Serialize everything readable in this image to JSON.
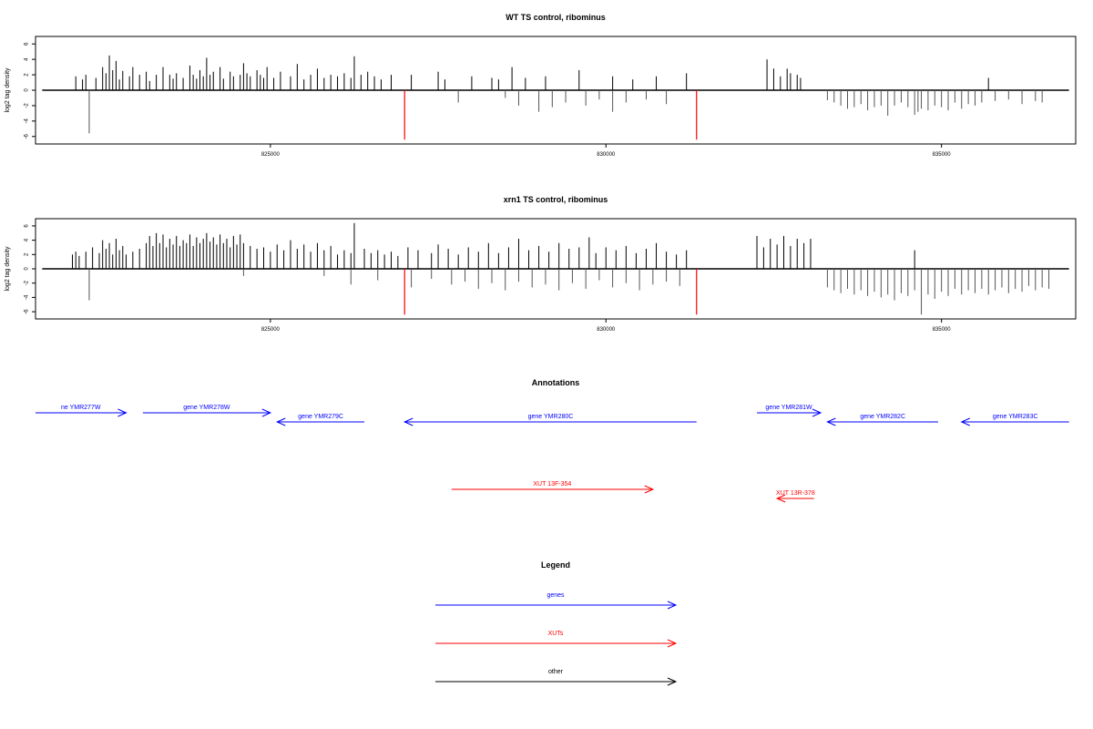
{
  "chart_data": [
    {
      "type": "bar",
      "title": "WT TS control, ribominus",
      "ylabel": "log2 tag density",
      "xlabel": "",
      "xlim": [
        821500,
        837000
      ],
      "ylim": [
        -6.5,
        6.5
      ],
      "yticks": [
        -6,
        -4,
        -2,
        0,
        2,
        4,
        6
      ],
      "xticks": [
        825000,
        830000,
        835000
      ],
      "xtick_labels": [
        "825000",
        "830000",
        "835000"
      ],
      "grid": false,
      "bars_forward": [
        [
          822100,
          1.8
        ],
        [
          822200,
          1.4
        ],
        [
          822250,
          2.0
        ],
        [
          822400,
          1.6
        ],
        [
          822500,
          3.0
        ],
        [
          822550,
          2.2
        ],
        [
          822600,
          4.5
        ],
        [
          822650,
          2.6
        ],
        [
          822700,
          3.8
        ],
        [
          822750,
          1.4
        ],
        [
          822800,
          2.5
        ],
        [
          822900,
          1.8
        ],
        [
          822950,
          3.0
        ],
        [
          823050,
          2.0
        ],
        [
          823150,
          2.4
        ],
        [
          823200,
          1.2
        ],
        [
          823300,
          2.0
        ],
        [
          823400,
          3.0
        ],
        [
          823500,
          2.0
        ],
        [
          823550,
          1.5
        ],
        [
          823600,
          2.2
        ],
        [
          823700,
          1.6
        ],
        [
          823800,
          3.2
        ],
        [
          823850,
          2.0
        ],
        [
          823900,
          1.5
        ],
        [
          823950,
          2.6
        ],
        [
          824000,
          1.8
        ],
        [
          824050,
          4.2
        ],
        [
          824100,
          2.0
        ],
        [
          824150,
          2.4
        ],
        [
          824250,
          3.0
        ],
        [
          824300,
          1.5
        ],
        [
          824400,
          2.4
        ],
        [
          824450,
          1.8
        ],
        [
          824550,
          2.0
        ],
        [
          824600,
          3.5
        ],
        [
          824650,
          2.2
        ],
        [
          824700,
          1.8
        ],
        [
          824800,
          2.6
        ],
        [
          824850,
          2.0
        ],
        [
          824900,
          1.6
        ],
        [
          824950,
          3.0
        ],
        [
          825050,
          1.6
        ],
        [
          825150,
          2.4
        ],
        [
          825300,
          1.8
        ],
        [
          825400,
          3.4
        ],
        [
          825500,
          1.4
        ],
        [
          825600,
          2.0
        ],
        [
          825700,
          2.8
        ],
        [
          825800,
          1.6
        ],
        [
          825900,
          2.0
        ],
        [
          826000,
          1.8
        ],
        [
          826100,
          2.2
        ],
        [
          826200,
          1.6
        ],
        [
          826250,
          4.4
        ],
        [
          826350,
          2.0
        ],
        [
          826450,
          2.4
        ],
        [
          826550,
          1.8
        ],
        [
          826650,
          1.4
        ],
        [
          826800,
          2.0
        ],
        [
          827100,
          2.0
        ],
        [
          827500,
          2.4
        ],
        [
          827600,
          1.4
        ],
        [
          828000,
          1.8
        ],
        [
          828300,
          1.6
        ],
        [
          828400,
          1.4
        ],
        [
          828600,
          3.0
        ],
        [
          828800,
          1.6
        ],
        [
          829100,
          1.8
        ],
        [
          829600,
          2.6
        ],
        [
          830100,
          1.8
        ],
        [
          830400,
          1.4
        ],
        [
          830750,
          1.8
        ],
        [
          831200,
          2.2
        ],
        [
          832400,
          4.0
        ],
        [
          832500,
          2.8
        ],
        [
          832600,
          1.8
        ],
        [
          832700,
          2.8
        ],
        [
          832750,
          2.2
        ],
        [
          832850,
          2.0
        ],
        [
          832900,
          1.6
        ],
        [
          835700,
          1.6
        ]
      ],
      "bars_reverse": [
        [
          822300,
          -5.6
        ],
        [
          827800,
          -1.6
        ],
        [
          828500,
          -1.0
        ],
        [
          828700,
          -2.0
        ],
        [
          829000,
          -2.8
        ],
        [
          829200,
          -2.2
        ],
        [
          829400,
          -1.6
        ],
        [
          829700,
          -2.0
        ],
        [
          829900,
          -1.2
        ],
        [
          830100,
          -2.8
        ],
        [
          830300,
          -1.6
        ],
        [
          830600,
          -1.2
        ],
        [
          830900,
          -1.8
        ],
        [
          833300,
          -1.3
        ],
        [
          833400,
          -1.6
        ],
        [
          833500,
          -2.0
        ],
        [
          833600,
          -2.4
        ],
        [
          833700,
          -2.2
        ],
        [
          833800,
          -1.8
        ],
        [
          833900,
          -2.6
        ],
        [
          834000,
          -2.2
        ],
        [
          834100,
          -2.0
        ],
        [
          834200,
          -3.3
        ],
        [
          834300,
          -2.0
        ],
        [
          834400,
          -1.6
        ],
        [
          834500,
          -2.2
        ],
        [
          834600,
          -3.2
        ],
        [
          834650,
          -2.8
        ],
        [
          834700,
          -2.4
        ],
        [
          834800,
          -2.6
        ],
        [
          834900,
          -2.0
        ],
        [
          835000,
          -2.2
        ],
        [
          835100,
          -2.6
        ],
        [
          835200,
          -1.6
        ],
        [
          835300,
          -2.4
        ],
        [
          835400,
          -1.8
        ],
        [
          835500,
          -2.0
        ],
        [
          835600,
          -1.6
        ],
        [
          835800,
          -1.4
        ],
        [
          836000,
          -1.2
        ],
        [
          836200,
          -1.8
        ],
        [
          836400,
          -1.4
        ],
        [
          836500,
          -1.6
        ]
      ],
      "highlight_bars": [
        [
          827000,
          -6.4
        ],
        [
          831350,
          -6.4
        ]
      ],
      "bar_color": "#000000",
      "highlight_color": "#ff0000"
    },
    {
      "type": "bar",
      "title": "xrn1 TS control, ribominus",
      "ylabel": "log2 tag density",
      "xlabel": "",
      "xlim": [
        821500,
        837000
      ],
      "ylim": [
        -6.5,
        6.5
      ],
      "yticks": [
        -6,
        -4,
        -2,
        0,
        2,
        4,
        6
      ],
      "xticks": [
        825000,
        830000,
        835000
      ],
      "xtick_labels": [
        "825000",
        "830000",
        "835000"
      ],
      "grid": false,
      "bars_forward": [
        [
          822050,
          2.0
        ],
        [
          822100,
          2.4
        ],
        [
          822150,
          1.8
        ],
        [
          822250,
          2.4
        ],
        [
          822350,
          3.0
        ],
        [
          822450,
          2.2
        ],
        [
          822500,
          4.0
        ],
        [
          822550,
          2.8
        ],
        [
          822600,
          3.6
        ],
        [
          822650,
          2.0
        ],
        [
          822700,
          4.2
        ],
        [
          822750,
          2.6
        ],
        [
          822800,
          3.2
        ],
        [
          822850,
          2.0
        ],
        [
          822950,
          2.4
        ],
        [
          823050,
          2.8
        ],
        [
          823150,
          3.6
        ],
        [
          823200,
          4.6
        ],
        [
          823250,
          3.2
        ],
        [
          823300,
          5.0
        ],
        [
          823350,
          3.6
        ],
        [
          823400,
          4.8
        ],
        [
          823450,
          3.0
        ],
        [
          823500,
          4.2
        ],
        [
          823550,
          3.4
        ],
        [
          823600,
          4.6
        ],
        [
          823650,
          3.2
        ],
        [
          823700,
          4.0
        ],
        [
          823750,
          3.6
        ],
        [
          823800,
          4.8
        ],
        [
          823850,
          3.2
        ],
        [
          823900,
          4.4
        ],
        [
          823950,
          3.6
        ],
        [
          824000,
          4.2
        ],
        [
          824050,
          5.0
        ],
        [
          824100,
          3.8
        ],
        [
          824150,
          4.4
        ],
        [
          824200,
          3.4
        ],
        [
          824250,
          4.8
        ],
        [
          824300,
          3.6
        ],
        [
          824350,
          4.2
        ],
        [
          824400,
          3.0
        ],
        [
          824450,
          4.6
        ],
        [
          824500,
          3.4
        ],
        [
          824550,
          4.8
        ],
        [
          824600,
          3.6
        ],
        [
          824700,
          3.2
        ],
        [
          824800,
          2.8
        ],
        [
          824900,
          3.0
        ],
        [
          825000,
          2.4
        ],
        [
          825100,
          3.4
        ],
        [
          825200,
          2.6
        ],
        [
          825300,
          4.0
        ],
        [
          825400,
          2.8
        ],
        [
          825500,
          3.4
        ],
        [
          825600,
          2.4
        ],
        [
          825700,
          3.6
        ],
        [
          825800,
          2.6
        ],
        [
          825900,
          3.2
        ],
        [
          826000,
          2.0
        ],
        [
          826100,
          2.6
        ],
        [
          826200,
          2.2
        ],
        [
          826250,
          6.4
        ],
        [
          826400,
          2.8
        ],
        [
          826500,
          2.2
        ],
        [
          826600,
          2.6
        ],
        [
          826700,
          2.0
        ],
        [
          826800,
          2.4
        ],
        [
          826900,
          1.8
        ],
        [
          827050,
          3.0
        ],
        [
          827200,
          2.6
        ],
        [
          827400,
          2.2
        ],
        [
          827500,
          3.4
        ],
        [
          827650,
          2.8
        ],
        [
          827800,
          2.0
        ],
        [
          827950,
          3.0
        ],
        [
          828100,
          2.4
        ],
        [
          828250,
          3.6
        ],
        [
          828400,
          2.2
        ],
        [
          828550,
          3.0
        ],
        [
          828700,
          4.2
        ],
        [
          828850,
          2.6
        ],
        [
          829000,
          3.2
        ],
        [
          829150,
          2.4
        ],
        [
          829300,
          3.6
        ],
        [
          829450,
          2.8
        ],
        [
          829600,
          3.0
        ],
        [
          829750,
          4.4
        ],
        [
          829850,
          2.2
        ],
        [
          830000,
          3.0
        ],
        [
          830150,
          2.6
        ],
        [
          830300,
          3.2
        ],
        [
          830450,
          2.2
        ],
        [
          830600,
          2.8
        ],
        [
          830750,
          3.6
        ],
        [
          830900,
          2.4
        ],
        [
          831050,
          2.0
        ],
        [
          831200,
          2.6
        ],
        [
          832250,
          4.6
        ],
        [
          832350,
          3.0
        ],
        [
          832450,
          4.2
        ],
        [
          832550,
          3.4
        ],
        [
          832650,
          4.6
        ],
        [
          832750,
          3.2
        ],
        [
          832850,
          4.2
        ],
        [
          832950,
          3.6
        ],
        [
          833050,
          4.2
        ],
        [
          834600,
          2.6
        ]
      ],
      "bars_reverse": [
        [
          822300,
          -4.4
        ],
        [
          824600,
          -1.0
        ],
        [
          825800,
          -1.0
        ],
        [
          826200,
          -2.2
        ],
        [
          826600,
          -1.6
        ],
        [
          827100,
          -2.6
        ],
        [
          827400,
          -1.4
        ],
        [
          827700,
          -2.2
        ],
        [
          827900,
          -1.8
        ],
        [
          828100,
          -2.8
        ],
        [
          828300,
          -2.0
        ],
        [
          828500,
          -3.0
        ],
        [
          828700,
          -1.8
        ],
        [
          828900,
          -2.6
        ],
        [
          829100,
          -2.2
        ],
        [
          829300,
          -3.0
        ],
        [
          829500,
          -2.0
        ],
        [
          829700,
          -2.8
        ],
        [
          829900,
          -1.6
        ],
        [
          830100,
          -2.6
        ],
        [
          830300,
          -2.0
        ],
        [
          830500,
          -3.0
        ],
        [
          830700,
          -2.2
        ],
        [
          830900,
          -1.8
        ],
        [
          831100,
          -2.4
        ],
        [
          833300,
          -2.6
        ],
        [
          833400,
          -3.0
        ],
        [
          833500,
          -3.4
        ],
        [
          833600,
          -2.8
        ],
        [
          833700,
          -3.6
        ],
        [
          833800,
          -3.0
        ],
        [
          833900,
          -3.8
        ],
        [
          834000,
          -3.2
        ],
        [
          834100,
          -4.0
        ],
        [
          834200,
          -3.6
        ],
        [
          834300,
          -4.4
        ],
        [
          834400,
          -3.4
        ],
        [
          834500,
          -3.8
        ],
        [
          834600,
          -3.0
        ],
        [
          834700,
          -6.4
        ],
        [
          834800,
          -3.6
        ],
        [
          834900,
          -4.2
        ],
        [
          835000,
          -3.2
        ],
        [
          835100,
          -3.8
        ],
        [
          835200,
          -2.8
        ],
        [
          835300,
          -3.6
        ],
        [
          835400,
          -3.0
        ],
        [
          835500,
          -3.4
        ],
        [
          835600,
          -2.8
        ],
        [
          835700,
          -3.6
        ],
        [
          835800,
          -3.0
        ],
        [
          835900,
          -2.6
        ],
        [
          836000,
          -3.4
        ],
        [
          836100,
          -2.8
        ],
        [
          836200,
          -3.2
        ],
        [
          836300,
          -2.4
        ],
        [
          836400,
          -3.0
        ],
        [
          836500,
          -2.6
        ],
        [
          836600,
          -2.8
        ]
      ],
      "highlight_bars": [
        [
          827000,
          -6.4
        ],
        [
          831350,
          -6.4
        ]
      ],
      "bar_color": "#000000",
      "highlight_color": "#ff0000"
    },
    {
      "type": "annotation-track",
      "title": "Annotations",
      "features": [
        {
          "label": "ne YMR277W",
          "start": 821500,
          "end": 822850,
          "strand": "+",
          "row": 0,
          "kind": "gene"
        },
        {
          "label": "gene YMR278W",
          "start": 823100,
          "end": 825000,
          "strand": "+",
          "row": 0,
          "kind": "gene"
        },
        {
          "label": "gene YMR279C",
          "start": 825100,
          "end": 826400,
          "strand": "-",
          "row": 1,
          "kind": "gene"
        },
        {
          "label": "gene YMR280C",
          "start": 827000,
          "end": 831350,
          "strand": "-",
          "row": 1,
          "kind": "gene"
        },
        {
          "label": "gene YMR281W",
          "start": 832250,
          "end": 833200,
          "strand": "+",
          "row": 0,
          "kind": "gene"
        },
        {
          "label": "gene YMR282C",
          "start": 833300,
          "end": 834950,
          "strand": "-",
          "row": 1,
          "kind": "gene"
        },
        {
          "label": "gene YMR283C",
          "start": 835300,
          "end": 836900,
          "strand": "-",
          "row": 1,
          "kind": "gene"
        },
        {
          "label": "XUT 13F-354",
          "start": 827700,
          "end": 830700,
          "strand": "+",
          "row": 2,
          "kind": "xut"
        },
        {
          "label": "XUT 13R-378",
          "start": 832550,
          "end": 833100,
          "strand": "-",
          "row": 3,
          "kind": "xut"
        }
      ],
      "colors": {
        "gene": "#0000ff",
        "xut": "#ff0000"
      }
    },
    {
      "type": "legend",
      "title": "Legend",
      "entries": [
        {
          "label": "genes",
          "color": "#0000ff"
        },
        {
          "label": "XUTs",
          "color": "#ff0000"
        },
        {
          "label": "other",
          "color": "#000000"
        }
      ]
    }
  ]
}
